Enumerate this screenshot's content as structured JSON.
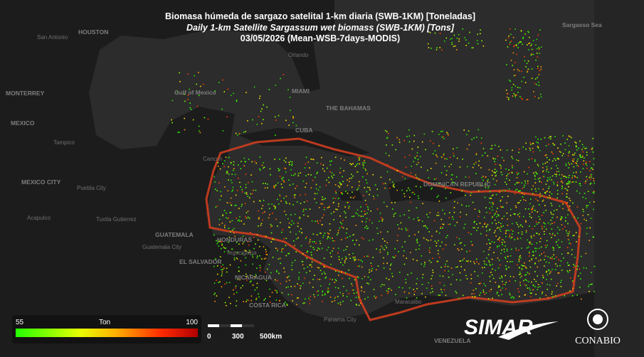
{
  "header": {
    "title_es": "Biomasa húmeda de sargazo satelital 1-km diaria (SWB-1KM) [Toneladas]",
    "title_en": "Daily 1-km Satellite Sargassum wet biomass (SWB-1KM) [Tons]",
    "subtitle": "03/05/2026 (Mean-WSB-7days-MODIS)"
  },
  "legend": {
    "min": 55,
    "unit": "Ton",
    "max": 100
  },
  "scale_bar": {
    "labels": [
      "0",
      "300",
      "500km"
    ]
  },
  "logos": {
    "simar": "SIMAR",
    "conabio": "CONABIO"
  },
  "places": [
    "San Antonio",
    "HOUSTON",
    "MONTERREY",
    "MEXICO",
    "Tampico",
    "MEXICO CITY",
    "Puebla City",
    "Acapulco",
    "Tuxtla Gutierrez",
    "GUATEMALA",
    "Guatemala City",
    "EL SALVADOR",
    "HONDURAS",
    "Tegucigalpa",
    "NICARAGUA",
    "COSTA RICA",
    "Panama City",
    "Maracaibo",
    "VENEZUELA",
    "MIAMI",
    "THE BAHAMAS",
    "CUBA",
    "Cancun",
    "DOMINICAN REPUBLIC",
    "Gulf of Mexico",
    "Orlando",
    "Sargasso Sea"
  ]
}
